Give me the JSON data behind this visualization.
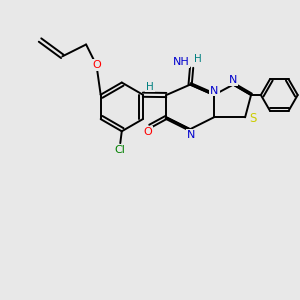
{
  "bg_color": "#e8e8e8",
  "bond_color": "#000000",
  "N_color": "#0000cd",
  "O_color": "#ff0000",
  "S_color": "#cccc00",
  "Cl_color": "#008000",
  "H_color": "#008080",
  "line_width": 1.4,
  "img_xlim": [
    0,
    10
  ],
  "img_ylim": [
    0,
    10
  ],
  "figsize": [
    3.0,
    3.0
  ],
  "dpi": 100
}
